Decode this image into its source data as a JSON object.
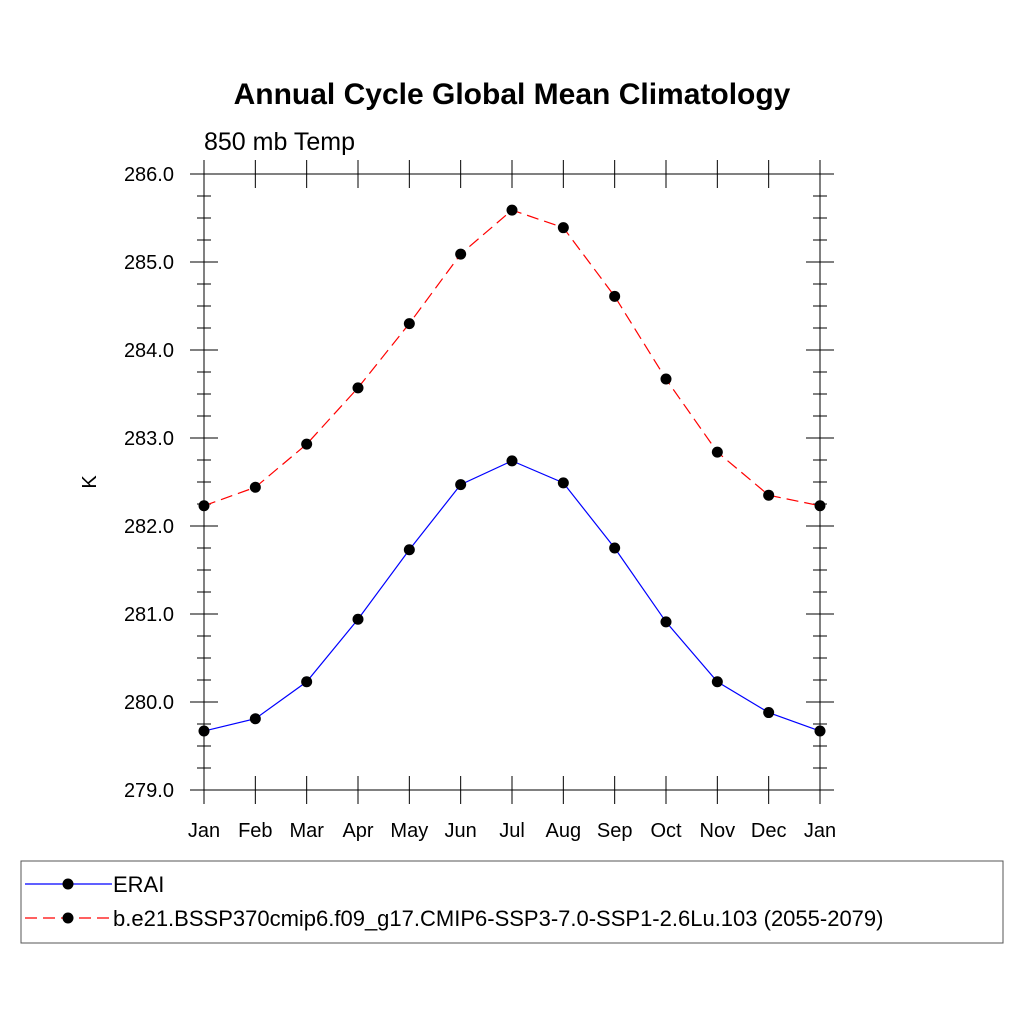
{
  "chart_data": {
    "type": "line",
    "title": "Annual Cycle Global Mean Climatology",
    "subtitle": "850 mb Temp",
    "xlabel": "",
    "ylabel": "K",
    "categories": [
      "Jan",
      "Feb",
      "Mar",
      "Apr",
      "May",
      "Jun",
      "Jul",
      "Aug",
      "Sep",
      "Oct",
      "Nov",
      "Dec",
      "Jan"
    ],
    "ylim": [
      279.0,
      286.0
    ],
    "yticks": [
      "279.0",
      "280.0",
      "281.0",
      "282.0",
      "283.0",
      "284.0",
      "285.0",
      "286.0"
    ],
    "grid": false,
    "legend_position": "bottom",
    "series": [
      {
        "name": "ERAI",
        "color": "#0000ff",
        "dash": "solid",
        "values": [
          279.67,
          279.81,
          280.23,
          280.94,
          281.73,
          282.47,
          282.74,
          282.49,
          281.75,
          280.91,
          280.23,
          279.88,
          279.67
        ]
      },
      {
        "name": "b.e21.BSSP370cmip6.f09_g17.CMIP6-SSP3-7.0-SSP1-2.6Lu.103 (2055-2079)",
        "color": "#ff0000",
        "dash": "dashed",
        "values": [
          282.23,
          282.44,
          282.93,
          283.57,
          284.3,
          285.09,
          285.59,
          285.39,
          284.61,
          283.67,
          282.84,
          282.35,
          282.23
        ]
      }
    ]
  }
}
